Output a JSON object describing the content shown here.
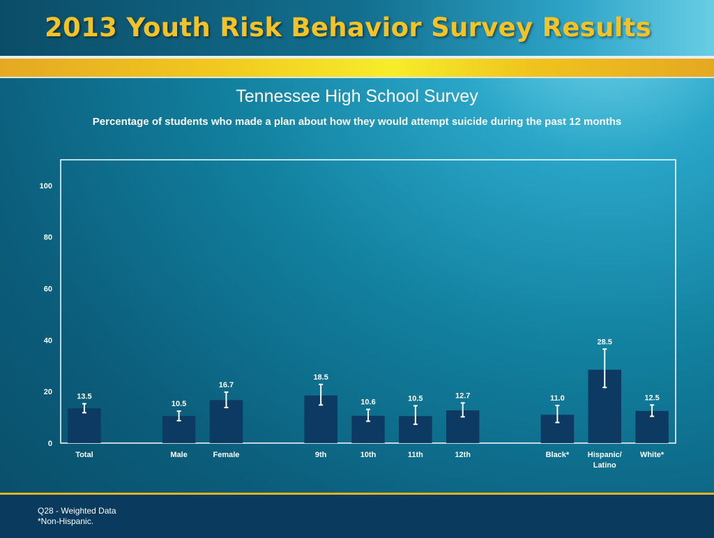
{
  "header": {
    "title": "2013 Youth Risk Behavior Survey Results"
  },
  "colors": {
    "title_gold": "#f3c226",
    "bar": "#0d3a63",
    "background": "#12809f",
    "footer": "#0a3a5e"
  },
  "chart_data": {
    "type": "bar",
    "title": "Tennessee High School Survey",
    "subtitle": "Percentage of students who made a plan about how they would attempt suicide during the past 12 months",
    "xlabel": "",
    "ylabel": "",
    "ylim": [
      0,
      110
    ],
    "yticks": [
      0,
      20,
      40,
      60,
      80,
      100
    ],
    "grid": false,
    "legend": "none",
    "categories": [
      "Total",
      "Male",
      "Female",
      "9th",
      "10th",
      "11th",
      "12th",
      "Black*",
      "Hispanic/\nLatino",
      "White*"
    ],
    "groups": [
      [
        "Total"
      ],
      [
        "Male",
        "Female"
      ],
      [
        "9th",
        "10th",
        "11th",
        "12th"
      ],
      [
        "Black*",
        "Hispanic/\nLatino",
        "White*"
      ]
    ],
    "values": [
      13.5,
      10.5,
      16.7,
      18.5,
      10.6,
      10.5,
      12.7,
      11.0,
      28.5,
      12.5
    ],
    "value_labels": [
      "13.5",
      "10.5",
      "16.7",
      "18.5",
      "10.6",
      "10.5",
      "12.7",
      "11.0",
      "28.5",
      "12.5"
    ],
    "ci_lower": [
      11.8,
      8.7,
      13.8,
      14.8,
      8.5,
      7.3,
      10.2,
      8.0,
      21.6,
      10.4
    ],
    "ci_upper": [
      15.3,
      12.4,
      19.8,
      22.8,
      13.1,
      14.5,
      15.6,
      14.6,
      36.5,
      14.8
    ]
  },
  "footer": {
    "note1": "Q28 - Weighted Data",
    "note2": "*Non-Hispanic."
  }
}
